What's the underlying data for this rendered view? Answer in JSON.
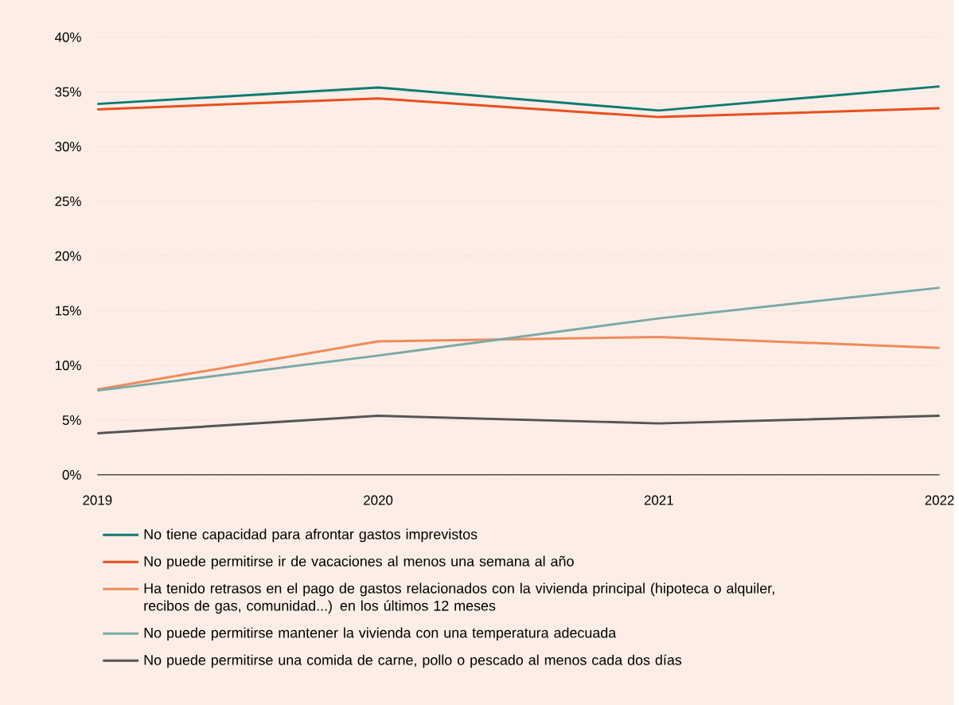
{
  "chart_data": {
    "type": "line",
    "x": [
      2019,
      2020,
      2021,
      2022
    ],
    "xlim": [
      2019,
      2022
    ],
    "xticks": [
      2019,
      2020,
      2021,
      2022
    ],
    "ylim": [
      0,
      40
    ],
    "yticks": [
      {
        "value": 0,
        "label": "0%"
      },
      {
        "value": 5,
        "label": "5%"
      },
      {
        "value": 10,
        "label": "10%"
      },
      {
        "value": 15,
        "label": "15%"
      },
      {
        "value": 20,
        "label": "20%"
      },
      {
        "value": 25,
        "label": "25%"
      },
      {
        "value": 30,
        "label": "30%"
      },
      {
        "value": 35,
        "label": "35%"
      },
      {
        "value": 40,
        "label": "40%"
      }
    ],
    "grid": "y",
    "legend": "bottom",
    "line_style": "solid",
    "series": [
      {
        "name": "No tiene capacidad para afrontar gastos imprevistos",
        "color": "#0e7a74",
        "values": [
          33.9,
          35.4,
          33.3,
          35.5
        ]
      },
      {
        "name": "No puede permitirse ir de vacaciones al menos una semana al año",
        "color": "#e8501e",
        "values": [
          33.4,
          34.4,
          32.7,
          33.5
        ]
      },
      {
        "name": "Ha tenido retrasos en el pago de gastos relacionados con la vivienda principal (hipoteca o alquiler, recibos de gas, comunidad...) en los últimos 12 meses",
        "color": "#f08a5a",
        "values": [
          7.8,
          12.2,
          12.6,
          11.6
        ]
      },
      {
        "name": "No puede permitirse mantener la vivienda con una temperatura adecuada",
        "color": "#7aa9a8",
        "values": [
          7.7,
          10.9,
          14.3,
          17.1
        ]
      },
      {
        "name": "No puede permitirse una comida de carne, pollo o pescado al menos cada dos días",
        "color": "#555555",
        "values": [
          3.8,
          5.4,
          4.7,
          5.4
        ]
      }
    ]
  }
}
